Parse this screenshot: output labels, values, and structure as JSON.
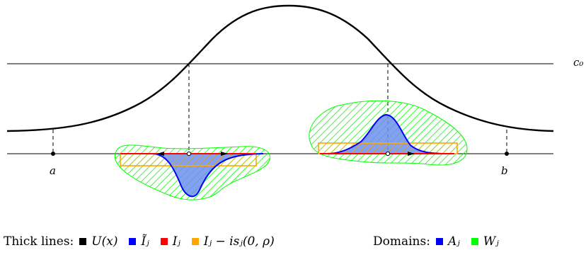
{
  "labels": {
    "a": "a",
    "b": "b",
    "c0": "c₀"
  },
  "legend": {
    "thick_title": "Thick lines:",
    "thick_items": [
      {
        "label": "U(x)",
        "color": "#000000"
      },
      {
        "label": "Ĩⱼ",
        "color": "#0000ff"
      },
      {
        "label": "Iⱼ",
        "color": "#ff0000"
      },
      {
        "label": "Iⱼ − isⱼ(0, ρ)",
        "color": "#ffa500"
      }
    ],
    "domains_title": "Domains:",
    "domain_items": [
      {
        "label": "Aⱼ",
        "color": "#0000ff"
      },
      {
        "label": "Wⱼ",
        "color": "#00ff00"
      }
    ]
  },
  "colors": {
    "curve": "#000000",
    "itilde": "#0000ff",
    "interval": "#ff0000",
    "shifted_interval": "#ffa500",
    "domain_a_fill": "#6f8ff0",
    "domain_w": "#00ff00"
  }
}
